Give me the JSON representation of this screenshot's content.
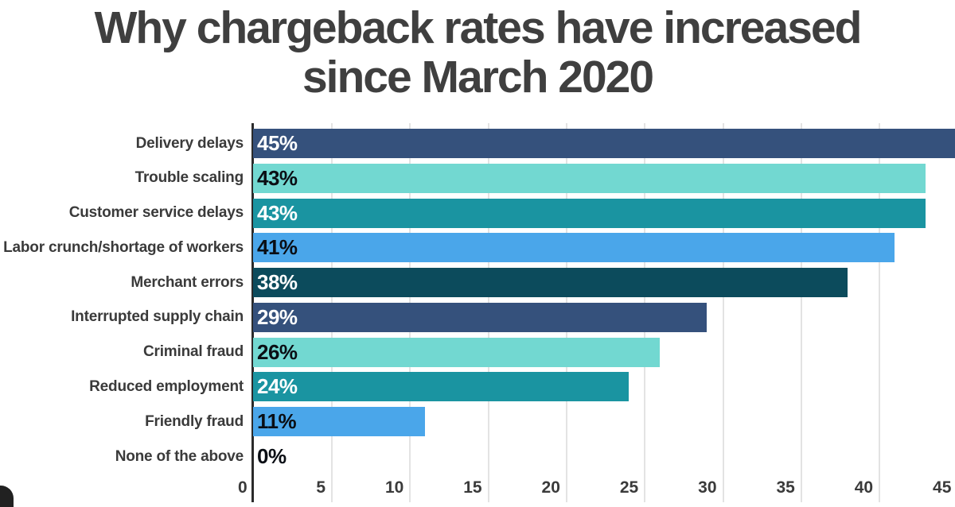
{
  "title": {
    "line1": "Why chargeback rates have increased",
    "line2": "since March 2020"
  },
  "chart_data": {
    "type": "bar",
    "orientation": "horizontal",
    "title": "Why chargeback rates have increased since March 2020",
    "categories": [
      "Delivery delays",
      "Trouble scaling",
      "Customer service delays",
      "Labor crunch/shortage of workers",
      "Merchant errors",
      "Interrupted supply chain",
      "Criminal fraud",
      "Reduced employment",
      "Friendly fraud",
      "None of the above"
    ],
    "values": [
      45,
      43,
      43,
      41,
      38,
      29,
      26,
      24,
      11,
      0
    ],
    "value_labels": [
      "45%",
      "43%",
      "43%",
      "41%",
      "38%",
      "29%",
      "26%",
      "24%",
      "11%",
      "0%"
    ],
    "bar_colors": [
      "#35517C",
      "#72D8D1",
      "#1A94A1",
      "#4AA6EA",
      "#0C4B5C",
      "#35517C",
      "#72D8D1",
      "#1A94A1",
      "#4AA6EA",
      "none"
    ],
    "value_label_colors": [
      "#FFFFFF",
      "#0A0E14",
      "#FFFFFF",
      "#0A0E14",
      "#FFFFFF",
      "#FFFFFF",
      "#0A0E14",
      "#FFFFFF",
      "#0A0E14",
      "#0A0E14"
    ],
    "xticks": [
      0,
      5,
      10,
      15,
      20,
      25,
      30,
      35,
      40,
      45
    ],
    "xlim": [
      0,
      45.6
    ],
    "xlabel": "",
    "ylabel": "",
    "grid": "vertical",
    "legend": "none"
  },
  "colors": {
    "background": "#FFFFFF",
    "title_text": "#3F3F3F",
    "label_text": "#3A3A3A",
    "axis_line": "#2B2B2B",
    "gridline": "#E3E3E3",
    "corner_overlay": "#212121"
  }
}
